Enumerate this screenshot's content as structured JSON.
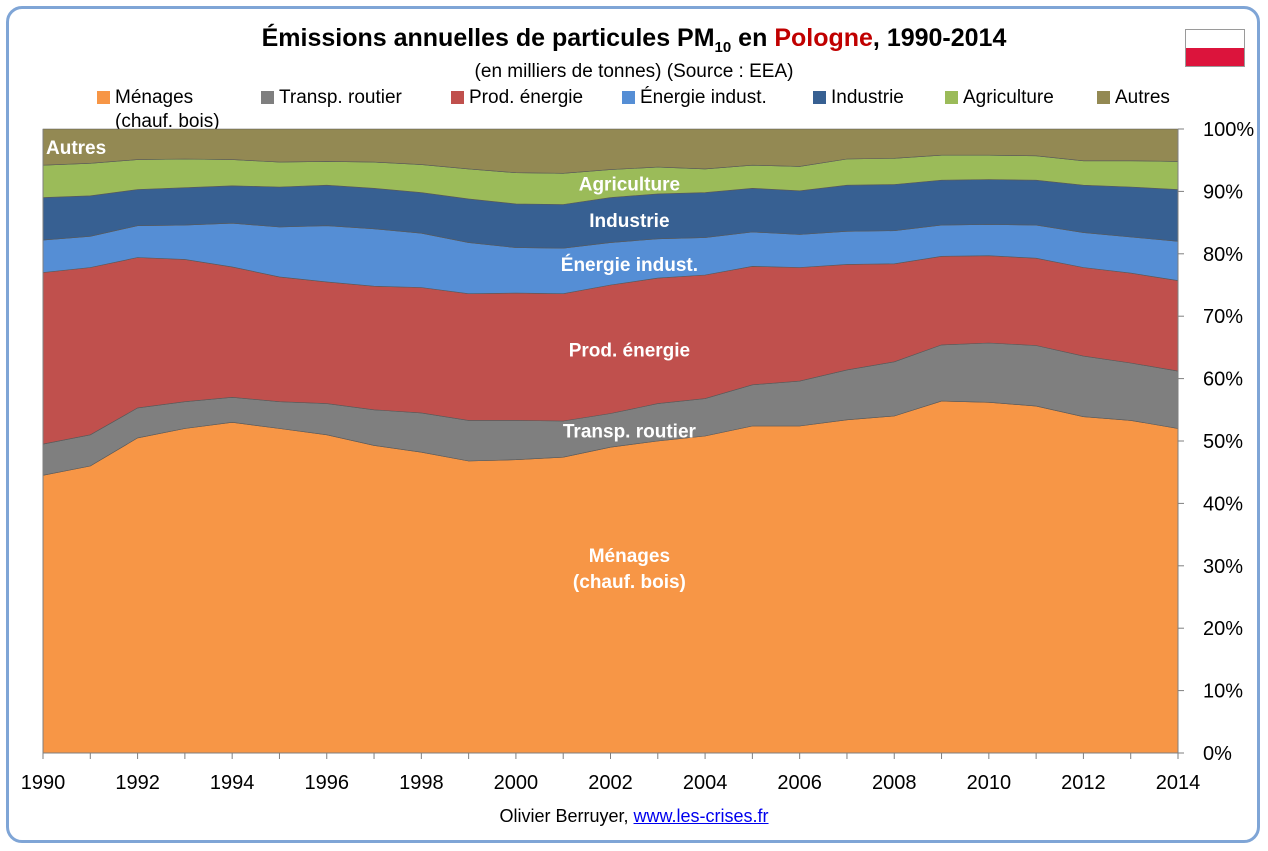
{
  "title": {
    "prefix": "Émissions annuelles de particules PM",
    "sub": "10",
    "middle": " en ",
    "country": "Pologne",
    "suffix": ", 1990-2014"
  },
  "subtitle": "(en milliers de tonnes) (Source : EEA)",
  "credit": {
    "author": "Olivier Berruyer, ",
    "link": "www.les-crises.fr"
  },
  "colors": {
    "accent_title": "#c00000",
    "frame_border": "#7fa5d6",
    "flag_white": "#ffffff",
    "flag_red": "#dc143c"
  },
  "chart_data": {
    "type": "area",
    "stacked": true,
    "normalized": true,
    "x": [
      1990,
      1991,
      1992,
      1993,
      1994,
      1995,
      1996,
      1997,
      1998,
      1999,
      2000,
      2001,
      2002,
      2003,
      2004,
      2005,
      2006,
      2007,
      2008,
      2009,
      2010,
      2011,
      2012,
      2013,
      2014
    ],
    "x_ticks": [
      1990,
      1992,
      1994,
      1996,
      1998,
      2000,
      2002,
      2004,
      2006,
      2008,
      2010,
      2012,
      2014
    ],
    "y_ticks": [
      "0%",
      "10%",
      "20%",
      "30%",
      "40%",
      "50%",
      "60%",
      "70%",
      "80%",
      "90%",
      "100%"
    ],
    "ylim": [
      0,
      100
    ],
    "y_axis_side": "right",
    "legend_position": "top",
    "series": [
      {
        "name": "Ménages\n(chauf. bois)",
        "color": "#f79646",
        "values": [
          44.5,
          46.0,
          50.5,
          52.0,
          53.0,
          52.0,
          51.0,
          49.3,
          48.2,
          46.8,
          47.0,
          47.4,
          49.0,
          50.0,
          50.8,
          52.4,
          52.4,
          53.4,
          54.0,
          56.4,
          56.2,
          55.6,
          53.9,
          53.3,
          52.0
        ]
      },
      {
        "name": "Transp. routier",
        "color": "#7f7f7f",
        "values": [
          5.0,
          5.0,
          4.8,
          4.3,
          4.0,
          4.3,
          5.0,
          5.7,
          6.3,
          6.5,
          6.3,
          5.8,
          5.4,
          6.0,
          6.0,
          6.6,
          7.2,
          8.0,
          8.7,
          9.0,
          9.5,
          9.7,
          9.7,
          9.2,
          9.2
        ]
      },
      {
        "name": "Prod. énergie",
        "color": "#c0504d",
        "values": [
          27.5,
          26.8,
          24.1,
          22.8,
          20.9,
          20.0,
          19.5,
          19.8,
          20.1,
          20.3,
          20.4,
          20.4,
          20.6,
          20.1,
          19.8,
          19.0,
          18.2,
          16.9,
          15.7,
          14.2,
          14.0,
          14.0,
          14.2,
          14.4,
          14.5
        ]
      },
      {
        "name": "Énergie indust.",
        "color": "#558ed5",
        "values": [
          5.2,
          5.0,
          5.1,
          5.5,
          7.0,
          8.0,
          9.0,
          9.2,
          8.7,
          8.2,
          7.3,
          7.3,
          6.8,
          6.3,
          6.0,
          5.5,
          5.3,
          5.3,
          5.3,
          5.0,
          5.0,
          5.3,
          5.6,
          5.8,
          6.3
        ]
      },
      {
        "name": "Industrie",
        "color": "#376092",
        "values": [
          6.8,
          6.5,
          5.8,
          6.0,
          6.0,
          6.4,
          6.5,
          6.5,
          6.5,
          7.0,
          7.0,
          7.0,
          7.2,
          7.2,
          7.2,
          7.0,
          7.0,
          7.4,
          7.4,
          7.2,
          7.2,
          7.2,
          7.6,
          8.0,
          8.3
        ]
      },
      {
        "name": "Agriculture",
        "color": "#9bbb59",
        "values": [
          5.2,
          5.2,
          4.8,
          4.6,
          4.2,
          4.0,
          3.8,
          4.2,
          4.5,
          4.8,
          5.0,
          5.0,
          4.5,
          4.3,
          3.8,
          3.7,
          3.9,
          4.2,
          4.2,
          4.0,
          3.9,
          3.9,
          3.9,
          4.2,
          4.5
        ]
      },
      {
        "name": "Autres",
        "color": "#938953",
        "values": [
          5.8,
          5.5,
          4.9,
          4.8,
          4.9,
          5.3,
          5.2,
          5.3,
          5.7,
          6.4,
          7.0,
          7.1,
          6.5,
          6.1,
          6.4,
          5.8,
          6.0,
          4.8,
          4.7,
          4.2,
          4.2,
          4.3,
          5.1,
          5.1,
          5.2
        ]
      }
    ],
    "annotations": [
      {
        "text": "Autres",
        "series": "Autres"
      },
      {
        "text": "Agriculture",
        "series": "Agriculture"
      },
      {
        "text": "Industrie",
        "series": "Industrie"
      },
      {
        "text": "Énergie indust.",
        "series": "Énergie indust."
      },
      {
        "text": "Prod. énergie",
        "series": "Prod. énergie"
      },
      {
        "text": "Transp. routier",
        "series": "Transp. routier"
      },
      {
        "text": "Ménages",
        "series": "Ménages\n(chauf. bois)"
      },
      {
        "text": "(chauf. bois)",
        "series": "Ménages\n(chauf. bois)"
      }
    ]
  }
}
